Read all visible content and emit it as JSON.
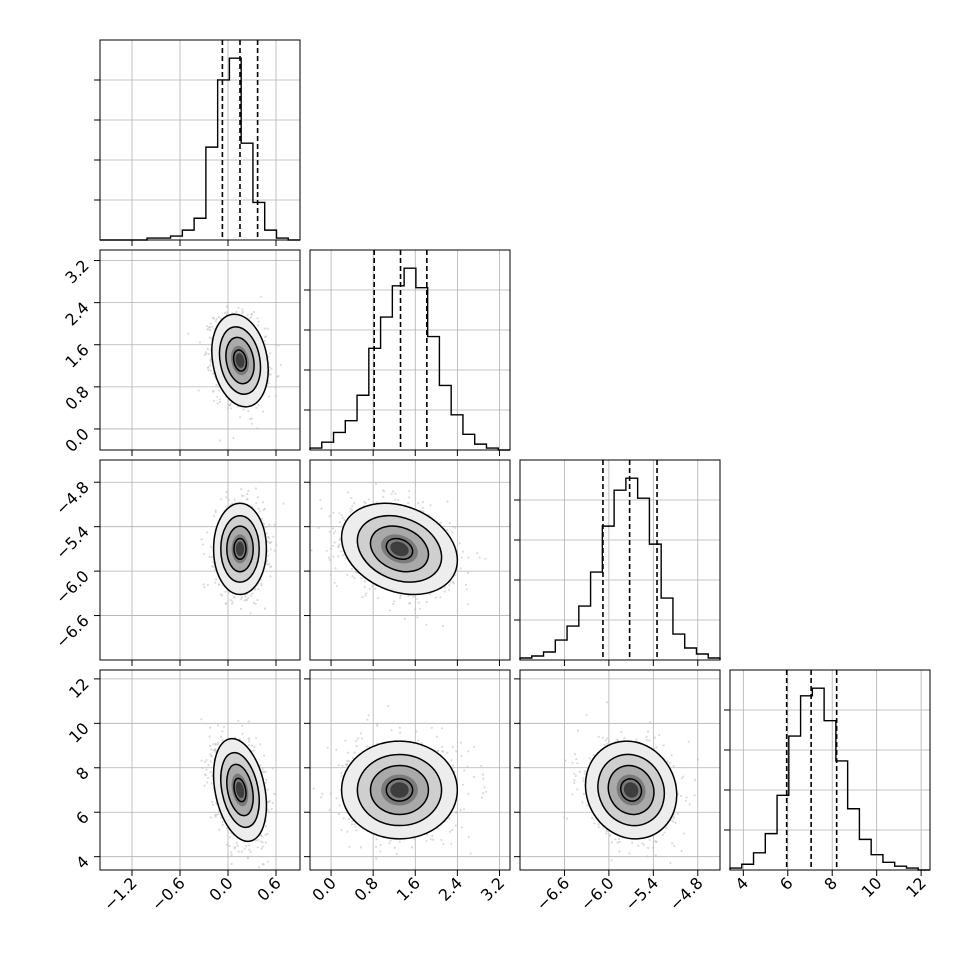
{
  "chart_data": {
    "type": "corner",
    "grid": true,
    "params": [
      {
        "range": [
          -1.6,
          0.9
        ],
        "ticks": [
          "-1.2",
          "-0.6",
          "0.0",
          "0.6"
        ],
        "tick_values": [
          -1.2,
          -0.6,
          0.0,
          0.6
        ],
        "quantiles": [
          -0.07,
          0.15,
          0.37
        ],
        "hist_edges": [
          -1.6,
          0.9
        ],
        "hist_counts": [
          0,
          0,
          0,
          0,
          1,
          1,
          2,
          5,
          11,
          47,
          81,
          92,
          49,
          19,
          5,
          1,
          0
        ]
      },
      {
        "range": [
          -0.4,
          3.4
        ],
        "ticks": [
          "0.0",
          "0.8",
          "1.6",
          "2.4",
          "3.2"
        ],
        "tick_values": [
          0.0,
          0.8,
          1.6,
          2.4,
          3.2
        ],
        "quantiles": [
          0.82,
          1.32,
          1.82
        ],
        "hist_edges": [
          -0.4,
          3.4
        ],
        "hist_counts": [
          1,
          4,
          9,
          15,
          28,
          52,
          68,
          84,
          93,
          83,
          58,
          33,
          18,
          8,
          3,
          1,
          0
        ]
      },
      {
        "range": [
          -7.2,
          -4.5
        ],
        "ticks": [
          "-6.6",
          "-6.0",
          "-5.4",
          "-4.8"
        ],
        "tick_values": [
          -6.6,
          -6.0,
          -5.4,
          -4.8
        ],
        "quantiles": [
          -6.08,
          -5.72,
          -5.35
        ],
        "hist_edges": [
          -7.2,
          -4.5
        ],
        "hist_counts": [
          1,
          2,
          4,
          10,
          17,
          27,
          44,
          67,
          85,
          91,
          81,
          58,
          31,
          13,
          6,
          3,
          1
        ]
      },
      {
        "range": [
          3.4,
          12.4
        ],
        "ticks": [
          "4",
          "6",
          "8",
          "10",
          "12"
        ],
        "tick_values": [
          4,
          6,
          8,
          10,
          12
        ],
        "quantiles": [
          5.95,
          7.05,
          8.2
        ],
        "hist_edges": [
          3.4,
          12.4
        ],
        "hist_counts": [
          1,
          3,
          9,
          19,
          39,
          70,
          91,
          95,
          78,
          57,
          32,
          16,
          8,
          4,
          2,
          1,
          0
        ]
      }
    ],
    "pairs": [
      {
        "row": 1,
        "col": 0,
        "center": [
          0.15,
          1.3
        ],
        "sd": [
          0.16,
          0.4
        ],
        "corr": -0.2
      },
      {
        "row": 2,
        "col": 0,
        "center": [
          0.15,
          -5.7
        ],
        "sd": [
          0.15,
          0.28
        ],
        "corr": 0.0
      },
      {
        "row": 2,
        "col": 1,
        "center": [
          1.3,
          -5.7
        ],
        "sd": [
          0.5,
          0.28
        ],
        "corr": -0.25
      },
      {
        "row": 3,
        "col": 0,
        "center": [
          0.15,
          7.0
        ],
        "sd": [
          0.15,
          1.05
        ],
        "corr": -0.3
      },
      {
        "row": 3,
        "col": 1,
        "center": [
          1.3,
          7.0
        ],
        "sd": [
          0.5,
          1.0
        ],
        "corr": 0.0
      },
      {
        "row": 3,
        "col": 2,
        "center": [
          -5.7,
          7.0
        ],
        "sd": [
          0.28,
          1.0
        ],
        "corr": -0.1
      }
    ]
  }
}
